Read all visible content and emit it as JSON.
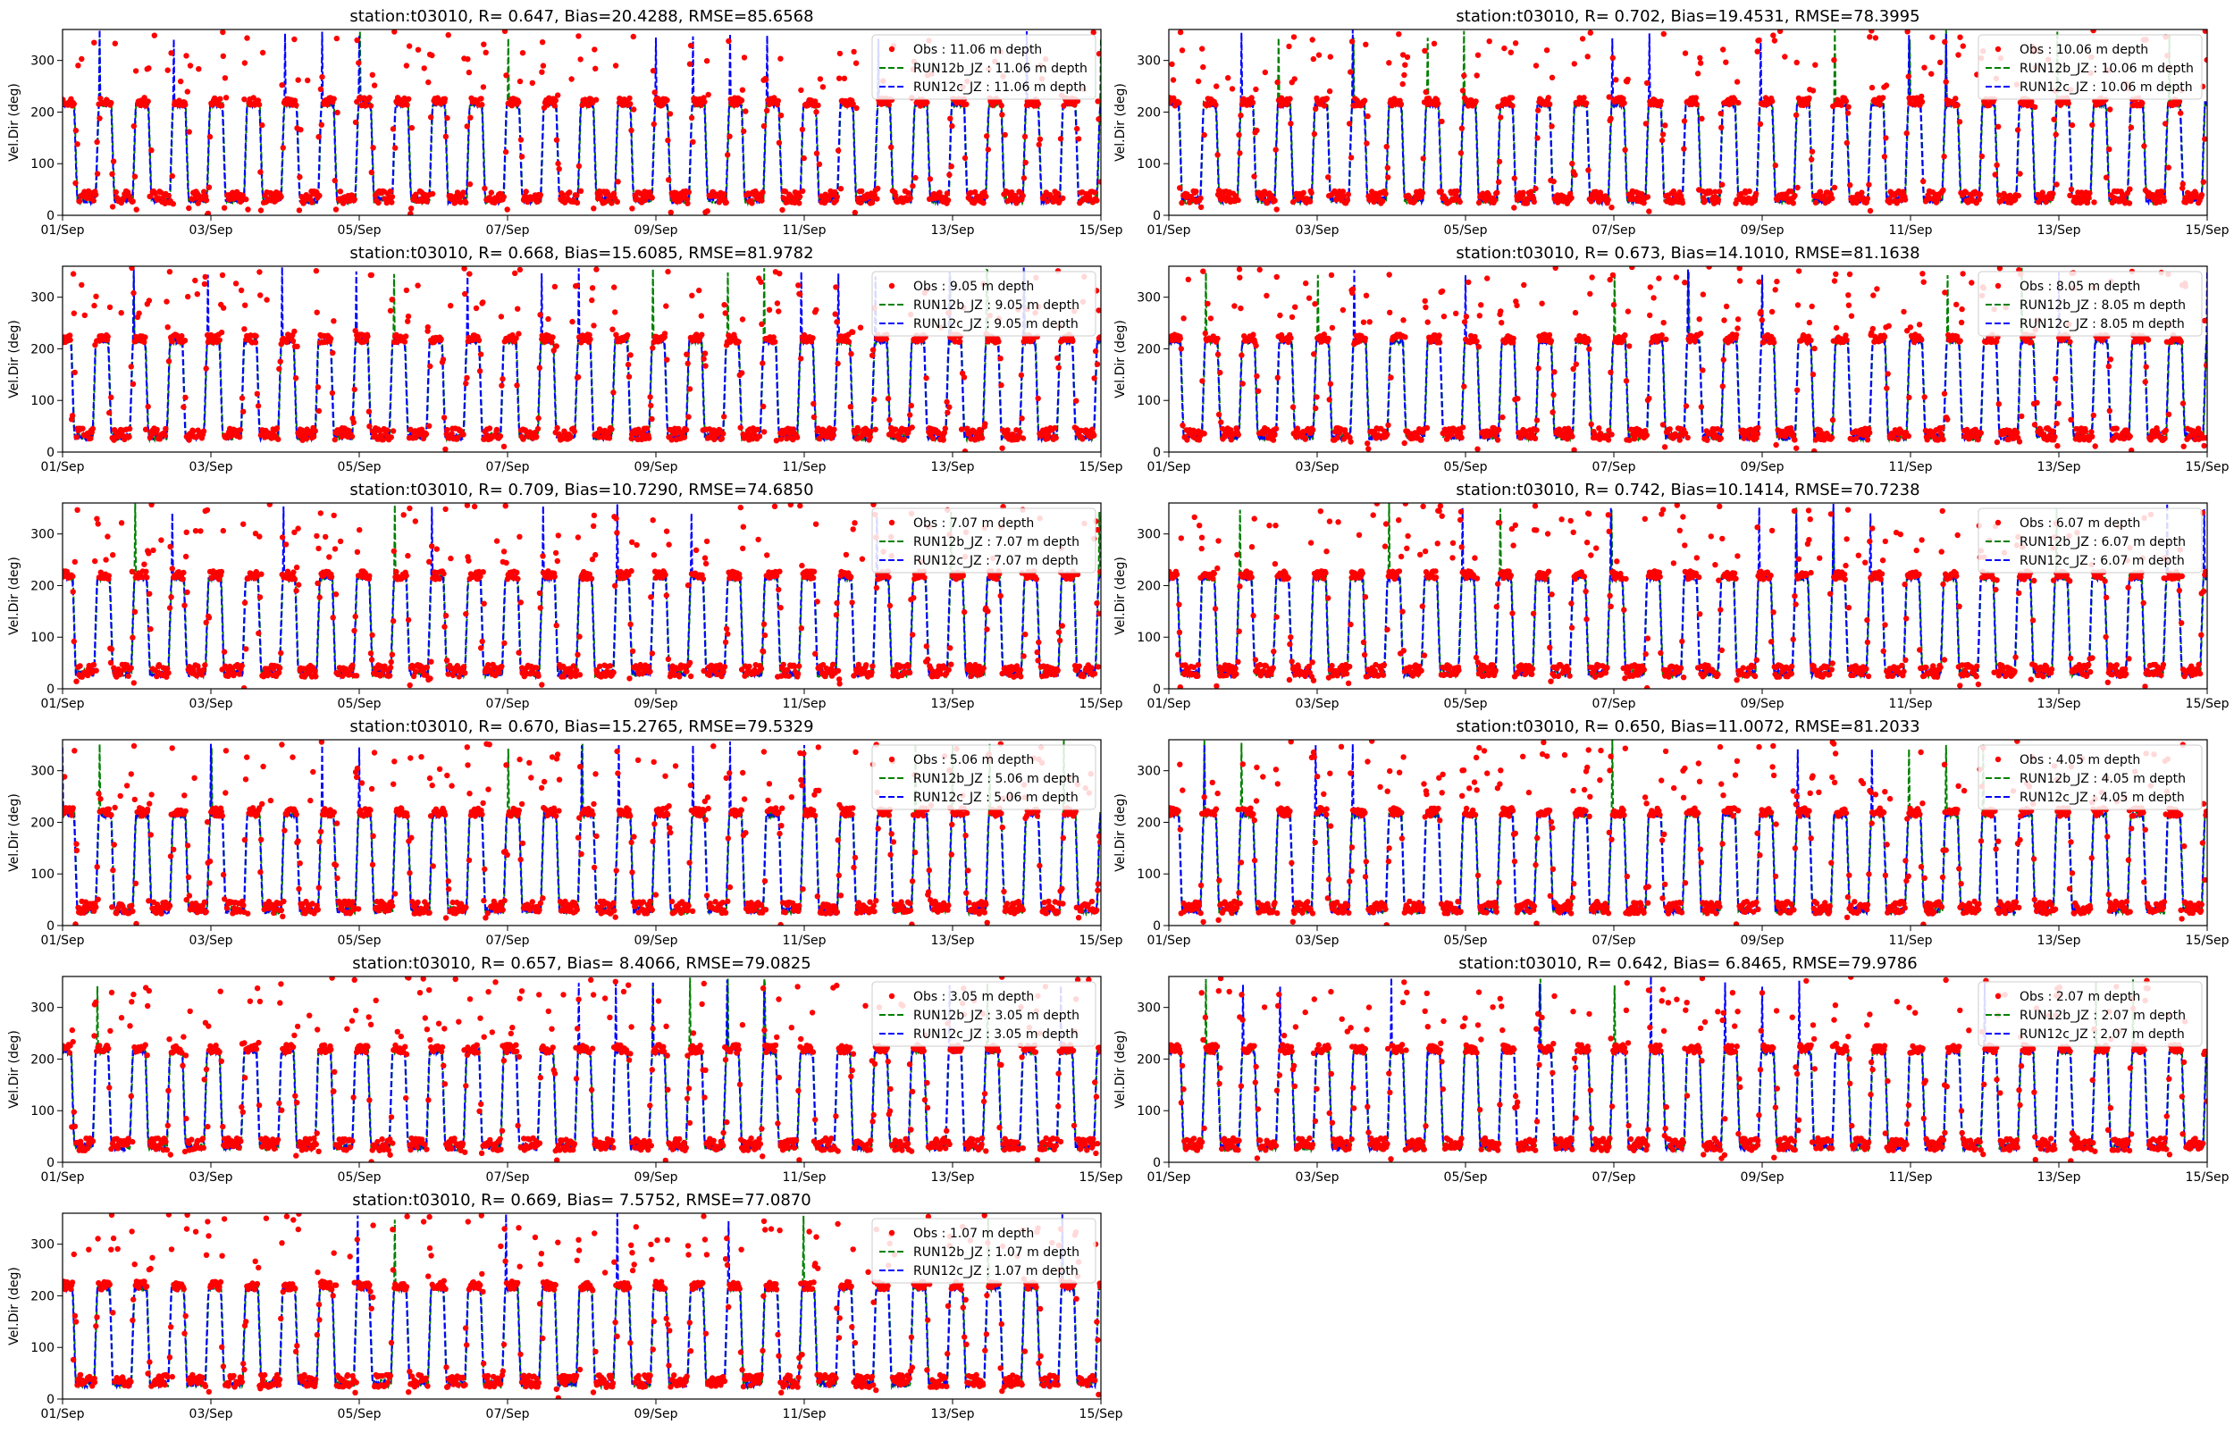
{
  "figure": {
    "station": "t03010",
    "ylabel": "Vel.Dir (deg)",
    "colors": {
      "obs": "#ff0000",
      "run12b": "#008000",
      "run12c": "#0000ff"
    }
  },
  "chart_data": [
    {
      "type": "line",
      "title": "station:t03010, R= 0.647, Bias=20.4288, RMSE=85.6568",
      "ylabel": "Vel.Dir (deg)",
      "xlim": [
        "01/Sep",
        "15/Sep"
      ],
      "ylim": [
        0,
        360
      ],
      "x_ticks": [
        "01/Sep",
        "03/Sep",
        "05/Sep",
        "07/Sep",
        "09/Sep",
        "11/Sep",
        "13/Sep",
        "15/Sep"
      ],
      "y_ticks": [
        0,
        100,
        200,
        300
      ],
      "legend": [
        "Obs : 11.06 m depth",
        "RUN12b_JZ : 11.06 m depth",
        "RUN12c_JZ : 11.06 m depth"
      ],
      "legend_position": "top-right",
      "series": [
        {
          "name": "Obs : 11.06 m depth",
          "style": "points",
          "high_level": 220,
          "low_level": 35
        },
        {
          "name": "RUN12b_JZ : 11.06 m depth",
          "style": "dashed",
          "high_level": 215,
          "low_level": 30
        },
        {
          "name": "RUN12c_JZ : 11.06 m depth",
          "style": "dashed",
          "high_level": 215,
          "low_level": 30
        }
      ]
    },
    {
      "type": "line",
      "title": "station:t03010, R= 0.702, Bias=19.4531, RMSE=78.3995",
      "ylabel": "Vel.Dir (deg)",
      "xlim": [
        "01/Sep",
        "15/Sep"
      ],
      "ylim": [
        0,
        360
      ],
      "x_ticks": [
        "01/Sep",
        "03/Sep",
        "05/Sep",
        "07/Sep",
        "09/Sep",
        "11/Sep",
        "13/Sep",
        "15/Sep"
      ],
      "y_ticks": [
        0,
        100,
        200,
        300
      ],
      "legend": [
        "Obs : 10.06 m depth",
        "RUN12b_JZ : 10.06 m depth",
        "RUN12c_JZ : 10.06 m depth"
      ],
      "legend_position": "top-right",
      "series": [
        {
          "name": "Obs : 10.06 m depth",
          "style": "points",
          "high_level": 220,
          "low_level": 35
        },
        {
          "name": "RUN12b_JZ : 10.06 m depth",
          "style": "dashed",
          "high_level": 215,
          "low_level": 30
        },
        {
          "name": "RUN12c_JZ : 10.06 m depth",
          "style": "dashed",
          "high_level": 215,
          "low_level": 30
        }
      ]
    },
    {
      "type": "line",
      "title": "station:t03010, R= 0.668, Bias=15.6085, RMSE=81.9782",
      "ylabel": "Vel.Dir (deg)",
      "xlim": [
        "01/Sep",
        "15/Sep"
      ],
      "ylim": [
        0,
        360
      ],
      "x_ticks": [
        "01/Sep",
        "03/Sep",
        "05/Sep",
        "07/Sep",
        "09/Sep",
        "11/Sep",
        "13/Sep",
        "15/Sep"
      ],
      "y_ticks": [
        0,
        100,
        200,
        300
      ],
      "legend": [
        "Obs : 9.05 m depth",
        "RUN12b_JZ : 9.05 m depth",
        "RUN12c_JZ : 9.05 m depth"
      ],
      "legend_position": "top-right",
      "series": [
        {
          "name": "Obs : 9.05 m depth",
          "style": "points",
          "high_level": 220,
          "low_level": 35
        },
        {
          "name": "RUN12b_JZ : 9.05 m depth",
          "style": "dashed",
          "high_level": 215,
          "low_level": 30
        },
        {
          "name": "RUN12c_JZ : 9.05 m depth",
          "style": "dashed",
          "high_level": 215,
          "low_level": 30
        }
      ]
    },
    {
      "type": "line",
      "title": "station:t03010, R= 0.673, Bias=14.1010, RMSE=81.1638",
      "ylabel": "Vel.Dir (deg)",
      "xlim": [
        "01/Sep",
        "15/Sep"
      ],
      "ylim": [
        0,
        360
      ],
      "x_ticks": [
        "01/Sep",
        "03/Sep",
        "05/Sep",
        "07/Sep",
        "09/Sep",
        "11/Sep",
        "13/Sep",
        "15/Sep"
      ],
      "y_ticks": [
        0,
        100,
        200,
        300
      ],
      "legend": [
        "Obs : 8.05 m depth",
        "RUN12b_JZ : 8.05 m depth",
        "RUN12c_JZ : 8.05 m depth"
      ],
      "legend_position": "top-right",
      "series": [
        {
          "name": "Obs : 8.05 m depth",
          "style": "points",
          "high_level": 220,
          "low_level": 35
        },
        {
          "name": "RUN12b_JZ : 8.05 m depth",
          "style": "dashed",
          "high_level": 215,
          "low_level": 30
        },
        {
          "name": "RUN12c_JZ : 8.05 m depth",
          "style": "dashed",
          "high_level": 215,
          "low_level": 30
        }
      ]
    },
    {
      "type": "line",
      "title": "station:t03010, R= 0.709, Bias=10.7290, RMSE=74.6850",
      "ylabel": "Vel.Dir (deg)",
      "xlim": [
        "01/Sep",
        "15/Sep"
      ],
      "ylim": [
        0,
        360
      ],
      "x_ticks": [
        "01/Sep",
        "03/Sep",
        "05/Sep",
        "07/Sep",
        "09/Sep",
        "11/Sep",
        "13/Sep",
        "15/Sep"
      ],
      "y_ticks": [
        0,
        100,
        200,
        300
      ],
      "legend": [
        "Obs : 7.07 m depth",
        "RUN12b_JZ : 7.07 m depth",
        "RUN12c_JZ : 7.07 m depth"
      ],
      "legend_position": "top-right",
      "series": [
        {
          "name": "Obs : 7.07 m depth",
          "style": "points",
          "high_level": 220,
          "low_level": 35
        },
        {
          "name": "RUN12b_JZ : 7.07 m depth",
          "style": "dashed",
          "high_level": 215,
          "low_level": 30
        },
        {
          "name": "RUN12c_JZ : 7.07 m depth",
          "style": "dashed",
          "high_level": 215,
          "low_level": 30
        }
      ]
    },
    {
      "type": "line",
      "title": "station:t03010, R= 0.742, Bias=10.1414, RMSE=70.7238",
      "ylabel": "Vel.Dir (deg)",
      "xlim": [
        "01/Sep",
        "15/Sep"
      ],
      "ylim": [
        0,
        360
      ],
      "x_ticks": [
        "01/Sep",
        "03/Sep",
        "05/Sep",
        "07/Sep",
        "09/Sep",
        "11/Sep",
        "13/Sep",
        "15/Sep"
      ],
      "y_ticks": [
        0,
        100,
        200,
        300
      ],
      "legend": [
        "Obs : 6.07 m depth",
        "RUN12b_JZ : 6.07 m depth",
        "RUN12c_JZ : 6.07 m depth"
      ],
      "legend_position": "top-right",
      "series": [
        {
          "name": "Obs : 6.07 m depth",
          "style": "points",
          "high_level": 220,
          "low_level": 35
        },
        {
          "name": "RUN12b_JZ : 6.07 m depth",
          "style": "dashed",
          "high_level": 215,
          "low_level": 30
        },
        {
          "name": "RUN12c_JZ : 6.07 m depth",
          "style": "dashed",
          "high_level": 215,
          "low_level": 30
        }
      ]
    },
    {
      "type": "line",
      "title": "station:t03010, R= 0.670, Bias=15.2765, RMSE=79.5329",
      "ylabel": "Vel.Dir (deg)",
      "xlim": [
        "01/Sep",
        "15/Sep"
      ],
      "ylim": [
        0,
        360
      ],
      "x_ticks": [
        "01/Sep",
        "03/Sep",
        "05/Sep",
        "07/Sep",
        "09/Sep",
        "11/Sep",
        "13/Sep",
        "15/Sep"
      ],
      "y_ticks": [
        0,
        100,
        200,
        300
      ],
      "legend": [
        "Obs : 5.06 m depth",
        "RUN12b_JZ : 5.06 m depth",
        "RUN12c_JZ : 5.06 m depth"
      ],
      "legend_position": "top-right",
      "series": [
        {
          "name": "Obs : 5.06 m depth",
          "style": "points",
          "high_level": 220,
          "low_level": 35
        },
        {
          "name": "RUN12b_JZ : 5.06 m depth",
          "style": "dashed",
          "high_level": 215,
          "low_level": 30
        },
        {
          "name": "RUN12c_JZ : 5.06 m depth",
          "style": "dashed",
          "high_level": 215,
          "low_level": 30
        }
      ]
    },
    {
      "type": "line",
      "title": "station:t03010, R= 0.650, Bias=11.0072, RMSE=81.2033",
      "ylabel": "Vel.Dir (deg)",
      "xlim": [
        "01/Sep",
        "15/Sep"
      ],
      "ylim": [
        0,
        360
      ],
      "x_ticks": [
        "01/Sep",
        "03/Sep",
        "05/Sep",
        "07/Sep",
        "09/Sep",
        "11/Sep",
        "13/Sep",
        "15/Sep"
      ],
      "y_ticks": [
        0,
        100,
        200,
        300
      ],
      "legend": [
        "Obs : 4.05 m depth",
        "RUN12b_JZ : 4.05 m depth",
        "RUN12c_JZ : 4.05 m depth"
      ],
      "legend_position": "top-right",
      "series": [
        {
          "name": "Obs : 4.05 m depth",
          "style": "points",
          "high_level": 220,
          "low_level": 35
        },
        {
          "name": "RUN12b_JZ : 4.05 m depth",
          "style": "dashed",
          "high_level": 215,
          "low_level": 30
        },
        {
          "name": "RUN12c_JZ : 4.05 m depth",
          "style": "dashed",
          "high_level": 215,
          "low_level": 30
        }
      ]
    },
    {
      "type": "line",
      "title": "station:t03010, R= 0.657, Bias= 8.4066, RMSE=79.0825",
      "ylabel": "Vel.Dir (deg)",
      "xlim": [
        "01/Sep",
        "15/Sep"
      ],
      "ylim": [
        0,
        360
      ],
      "x_ticks": [
        "01/Sep",
        "03/Sep",
        "05/Sep",
        "07/Sep",
        "09/Sep",
        "11/Sep",
        "13/Sep",
        "15/Sep"
      ],
      "y_ticks": [
        0,
        100,
        200,
        300
      ],
      "legend": [
        "Obs : 3.05 m depth",
        "RUN12b_JZ : 3.05 m depth",
        "RUN12c_JZ : 3.05 m depth"
      ],
      "legend_position": "top-right",
      "series": [
        {
          "name": "Obs : 3.05 m depth",
          "style": "points",
          "high_level": 220,
          "low_level": 35
        },
        {
          "name": "RUN12b_JZ : 3.05 m depth",
          "style": "dashed",
          "high_level": 215,
          "low_level": 30
        },
        {
          "name": "RUN12c_JZ : 3.05 m depth",
          "style": "dashed",
          "high_level": 215,
          "low_level": 30
        }
      ]
    },
    {
      "type": "line",
      "title": "station:t03010, R= 0.642, Bias= 6.8465, RMSE=79.9786",
      "ylabel": "Vel.Dir (deg)",
      "xlim": [
        "01/Sep",
        "15/Sep"
      ],
      "ylim": [
        0,
        360
      ],
      "x_ticks": [
        "01/Sep",
        "03/Sep",
        "05/Sep",
        "07/Sep",
        "09/Sep",
        "11/Sep",
        "13/Sep",
        "15/Sep"
      ],
      "y_ticks": [
        0,
        100,
        200,
        300
      ],
      "legend": [
        "Obs : 2.07 m depth",
        "RUN12b_JZ : 2.07 m depth",
        "RUN12c_JZ : 2.07 m depth"
      ],
      "legend_position": "top-right",
      "series": [
        {
          "name": "Obs : 2.07 m depth",
          "style": "points",
          "high_level": 220,
          "low_level": 35
        },
        {
          "name": "RUN12b_JZ : 2.07 m depth",
          "style": "dashed",
          "high_level": 215,
          "low_level": 30
        },
        {
          "name": "RUN12c_JZ : 2.07 m depth",
          "style": "dashed",
          "high_level": 215,
          "low_level": 30
        }
      ]
    },
    {
      "type": "line",
      "title": "station:t03010, R= 0.669, Bias= 7.5752, RMSE=77.0870",
      "ylabel": "Vel.Dir (deg)",
      "xlim": [
        "01/Sep",
        "15/Sep"
      ],
      "ylim": [
        0,
        360
      ],
      "x_ticks": [
        "01/Sep",
        "03/Sep",
        "05/Sep",
        "07/Sep",
        "09/Sep",
        "11/Sep",
        "13/Sep",
        "15/Sep"
      ],
      "y_ticks": [
        0,
        100,
        200,
        300
      ],
      "legend": [
        "Obs : 1.07 m depth",
        "RUN12b_JZ : 1.07 m depth",
        "RUN12c_JZ : 1.07 m depth"
      ],
      "legend_position": "top-right",
      "series": [
        {
          "name": "Obs : 1.07 m depth",
          "style": "points",
          "high_level": 220,
          "low_level": 35
        },
        {
          "name": "RUN12b_JZ : 1.07 m depth",
          "style": "dashed",
          "high_level": 215,
          "low_level": 30
        },
        {
          "name": "RUN12c_JZ : 1.07 m depth",
          "style": "dashed",
          "high_level": 215,
          "low_level": 30
        }
      ]
    }
  ]
}
